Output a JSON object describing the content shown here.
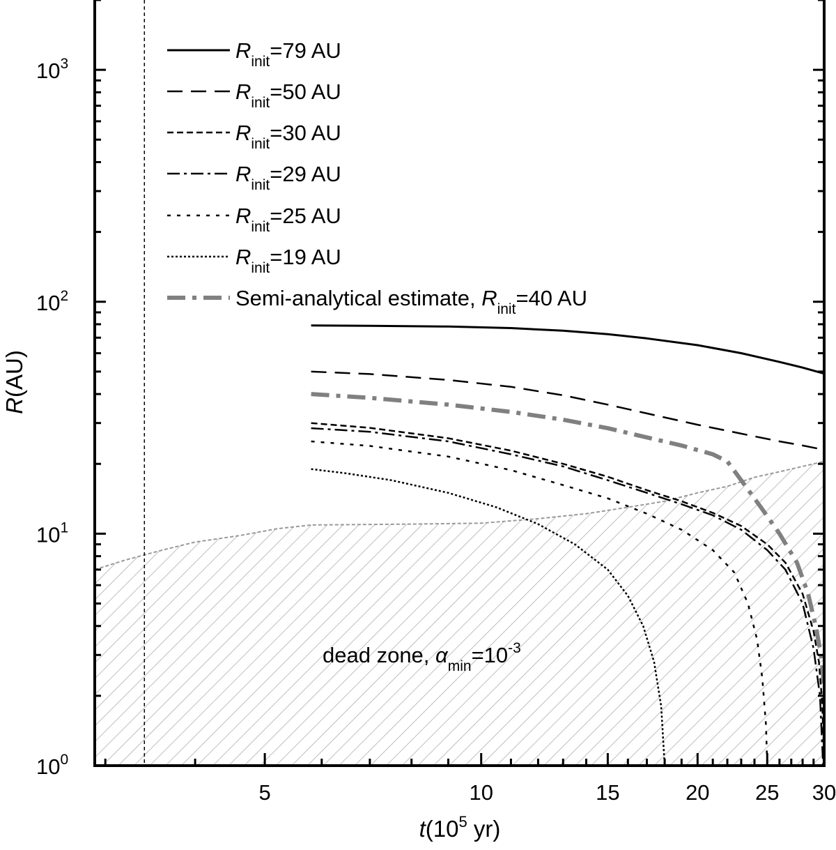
{
  "chart_data": {
    "type": "line",
    "x_scale": "log",
    "y_scale": "log",
    "xlim": [
      2.9,
      30
    ],
    "ylim": [
      1,
      2000
    ],
    "xlabel": {
      "main": "t",
      "paren_open": "(10",
      "sup": "5",
      "unit": " yr)"
    },
    "ylabel": {
      "main": "R",
      "unit": "(AU)"
    },
    "x_ticks": [
      {
        "value": 5,
        "label": "5"
      },
      {
        "value": 10,
        "label": "10"
      },
      {
        "value": 15,
        "label": "15"
      },
      {
        "value": 20,
        "label": "20"
      },
      {
        "value": 25,
        "label": "25"
      },
      {
        "value": 30,
        "label": "30"
      }
    ],
    "y_ticks": [
      {
        "value": 1,
        "base": "10",
        "exp": "0"
      },
      {
        "value": 10,
        "base": "10",
        "exp": "1"
      },
      {
        "value": 100,
        "base": "10",
        "exp": "2"
      },
      {
        "value": 1000,
        "base": "10",
        "exp": "3"
      }
    ],
    "vertical_marker": {
      "x": 3.4,
      "style": "dashed"
    },
    "dead_zone": {
      "label": {
        "prefix": "dead zone, ",
        "symbol": "α",
        "sub": "min",
        "eq": "=10",
        "sup": "-3"
      },
      "boundary": [
        [
          2.9,
          7.0
        ],
        [
          3.2,
          7.7
        ],
        [
          3.6,
          8.5
        ],
        [
          4.0,
          9.2
        ],
        [
          4.6,
          9.8
        ],
        [
          5.2,
          10.5
        ],
        [
          5.8,
          10.9
        ],
        [
          8,
          11.0
        ],
        [
          10,
          11.1
        ],
        [
          12,
          11.6
        ],
        [
          14,
          12.2
        ],
        [
          16,
          13.0
        ],
        [
          18,
          13.8
        ],
        [
          20,
          15.0
        ],
        [
          22,
          16.0
        ],
        [
          24,
          17.5
        ],
        [
          26,
          18.5
        ],
        [
          28,
          19.5
        ],
        [
          30,
          20.5
        ]
      ]
    },
    "series": [
      {
        "name": "R_init=79 AU",
        "sym": "R",
        "sub": "init",
        "rest": "=79 AU",
        "dash": "",
        "color": "#000000",
        "width": 3,
        "x": [
          5.8,
          7,
          9,
          11,
          13,
          15,
          17,
          20,
          23,
          26,
          28,
          30
        ],
        "y": [
          79,
          78.8,
          78.2,
          77.0,
          75.0,
          72.5,
          69.5,
          65.0,
          60.0,
          55.0,
          52.0,
          49.0
        ]
      },
      {
        "name": "R_init=50 AU",
        "sym": "R",
        "sub": "init",
        "rest": "=50 AU",
        "dash": "22,12",
        "color": "#000000",
        "width": 2.5,
        "x": [
          5.8,
          7,
          9,
          11,
          13,
          15,
          17,
          20,
          23,
          26,
          28,
          30
        ],
        "y": [
          50,
          48.8,
          46.0,
          43.0,
          39.5,
          36.0,
          33.0,
          29.5,
          27.0,
          25.0,
          24.0,
          23.0
        ]
      },
      {
        "name": "R_init=30 AU",
        "sym": "R",
        "sub": "init",
        "rest": "=30 AU",
        "dash": "9,5",
        "color": "#000000",
        "width": 2.5,
        "x": [
          5.8,
          7,
          9,
          11,
          13,
          15,
          17,
          19,
          21,
          23,
          25,
          26.5,
          28,
          29,
          29.5,
          29.8,
          30
        ],
        "y": [
          30,
          28.6,
          25.8,
          22.8,
          20.0,
          17.6,
          15.4,
          13.8,
          12.3,
          10.8,
          9.0,
          7.5,
          5.5,
          3.8,
          2.8,
          1.9,
          1.1
        ]
      },
      {
        "name": "R_init=29 AU",
        "sym": "R",
        "sub": "init",
        "rest": "=29 AU",
        "dash": "18,6,4,6",
        "color": "#000000",
        "width": 2.5,
        "x": [
          5.8,
          7,
          9,
          11,
          13,
          15,
          17,
          19,
          21,
          23,
          25,
          26.5,
          28,
          29,
          29.6,
          29.9
        ],
        "y": [
          28.5,
          27.5,
          25.0,
          22.0,
          19.5,
          17.0,
          15.0,
          13.4,
          12.0,
          10.4,
          8.5,
          7.0,
          5.0,
          3.2,
          2.0,
          1.0
        ]
      },
      {
        "name": "R_init=25 AU",
        "sym": "R",
        "sub": "init",
        "rest": "=25 AU",
        "dash": "5,9",
        "color": "#000000",
        "width": 2.5,
        "x": [
          5.8,
          7,
          9,
          11,
          13,
          15,
          17,
          19,
          21,
          22.5,
          23.5,
          24.2,
          24.6,
          24.9,
          25
        ],
        "y": [
          25,
          23.9,
          21.5,
          18.8,
          16.2,
          14.2,
          12.2,
          10.4,
          8.5,
          6.8,
          5.0,
          3.5,
          2.4,
          1.5,
          1.0
        ]
      },
      {
        "name": "R_init=19 AU",
        "sym": "R",
        "sub": "init",
        "rest": "=19 AU",
        "dash": "3,3",
        "color": "#000000",
        "width": 2.5,
        "x": [
          5.8,
          6.5,
          7.5,
          9,
          10.5,
          12,
          13.5,
          15,
          16,
          16.8,
          17.4,
          17.8,
          18
        ],
        "y": [
          19,
          18.2,
          17.0,
          15.0,
          13.0,
          11.0,
          9.0,
          7.0,
          5.4,
          4.0,
          2.8,
          1.8,
          1.0
        ]
      },
      {
        "name": "Semi-analytical estimate, R_init=40 AU",
        "sym": "R",
        "sub": "init",
        "pre": "Semi-analytical estimate, ",
        "rest": "=40 AU",
        "dash": "26,10,6,10",
        "color": "#808080",
        "width": 6,
        "x": [
          5.8,
          7,
          9,
          11,
          13,
          15,
          17,
          19,
          21,
          22,
          23,
          24.5,
          26,
          27.5,
          28.5,
          29.2,
          29.7,
          30
        ],
        "y": [
          40,
          38.5,
          36.0,
          33.5,
          31.0,
          28.5,
          26.0,
          24.0,
          22.0,
          20.5,
          17.0,
          13.0,
          10.0,
          7.5,
          5.5,
          4.0,
          3.0,
          2.2
        ]
      }
    ]
  }
}
